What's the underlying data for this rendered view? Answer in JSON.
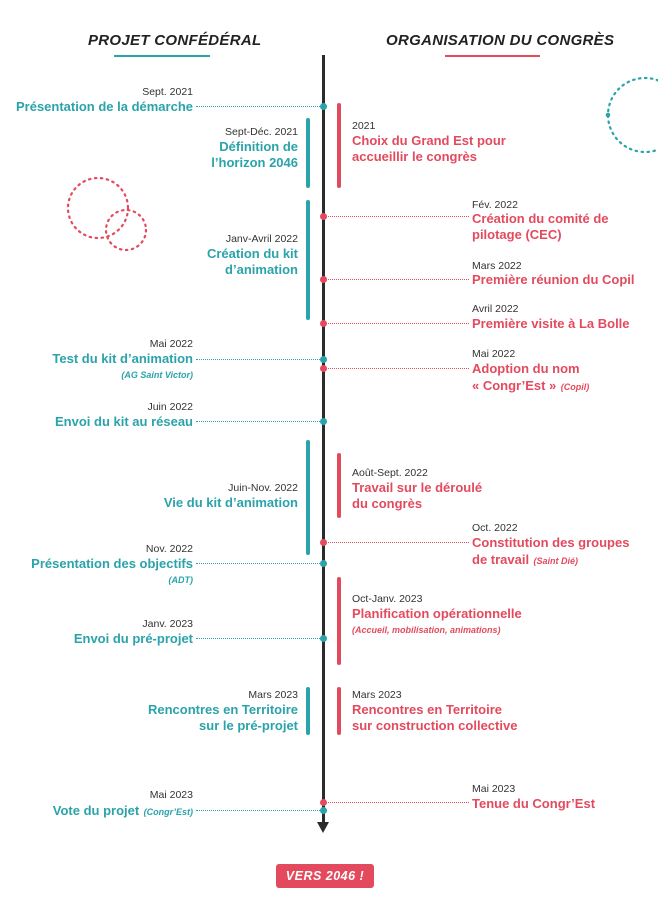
{
  "headers": {
    "left": "PROJET CONFÉDÉRAL",
    "right": "ORGANISATION DU CONGRÈS"
  },
  "colors": {
    "teal": "#2aa3aa",
    "red": "#e34a5e",
    "spine": "#2b2b2b"
  },
  "left_events": [
    {
      "date": "Sept. 2021",
      "title": "Présentation de la démarche"
    },
    {
      "date": "Sept-Déc. 2021",
      "title1": "Définition de",
      "title2": "l’horizon 2046"
    },
    {
      "date": "Janv-Avril 2022",
      "title1": "Création du kit",
      "title2": "d’animation"
    },
    {
      "date": "Mai 2022",
      "title": "Test du kit d’animation",
      "note": "(AG Saint Victor)"
    },
    {
      "date": "Juin 2022",
      "title": "Envoi du kit au réseau"
    },
    {
      "date": "Juin-Nov. 2022",
      "title": "Vie du kit d’animation"
    },
    {
      "date": "Nov. 2022",
      "title": "Présentation des objectifs",
      "note": "(ADT)"
    },
    {
      "date": "Janv. 2023",
      "title": "Envoi du pré-projet"
    },
    {
      "date": "Mars 2023",
      "title1": "Rencontres en Territoire",
      "title2": "sur le pré-projet"
    },
    {
      "date": "Mai 2023",
      "title": "Vote du projet",
      "note": "(Congr’Est)"
    }
  ],
  "right_events": [
    {
      "date": "2021",
      "title1": "Choix du Grand Est pour",
      "title2": "accueillir le congrès"
    },
    {
      "date": "Fév. 2022",
      "title1": "Création du comité de",
      "title2": "pilotage (CEC)"
    },
    {
      "date": "Mars 2022",
      "title": "Première réunion du Copil"
    },
    {
      "date": "Avril 2022",
      "title": "Première visite à La Bolle"
    },
    {
      "date": "Mai 2022",
      "title1": "Adoption du nom",
      "title2": "« Congr’Est »",
      "note": "(Copil)"
    },
    {
      "date": "Août-Sept. 2022",
      "title1": "Travail sur le déroulé",
      "title2": "du congrès"
    },
    {
      "date": "Oct. 2022",
      "title1": "Constitution des groupes",
      "title2": "de travail",
      "note": "(Saint Dié)"
    },
    {
      "date": "Oct-Janv. 2023",
      "title": "Planification opérationnelle",
      "note": "(Accueil, mobilisation, animations)"
    },
    {
      "date": "Mars 2023",
      "title1": "Rencontres en Territoire",
      "title2": "sur construction collective"
    },
    {
      "date": "Mai 2023",
      "title": "Tenue du Congr’Est"
    }
  ],
  "final_label": "VERS 2046 !"
}
